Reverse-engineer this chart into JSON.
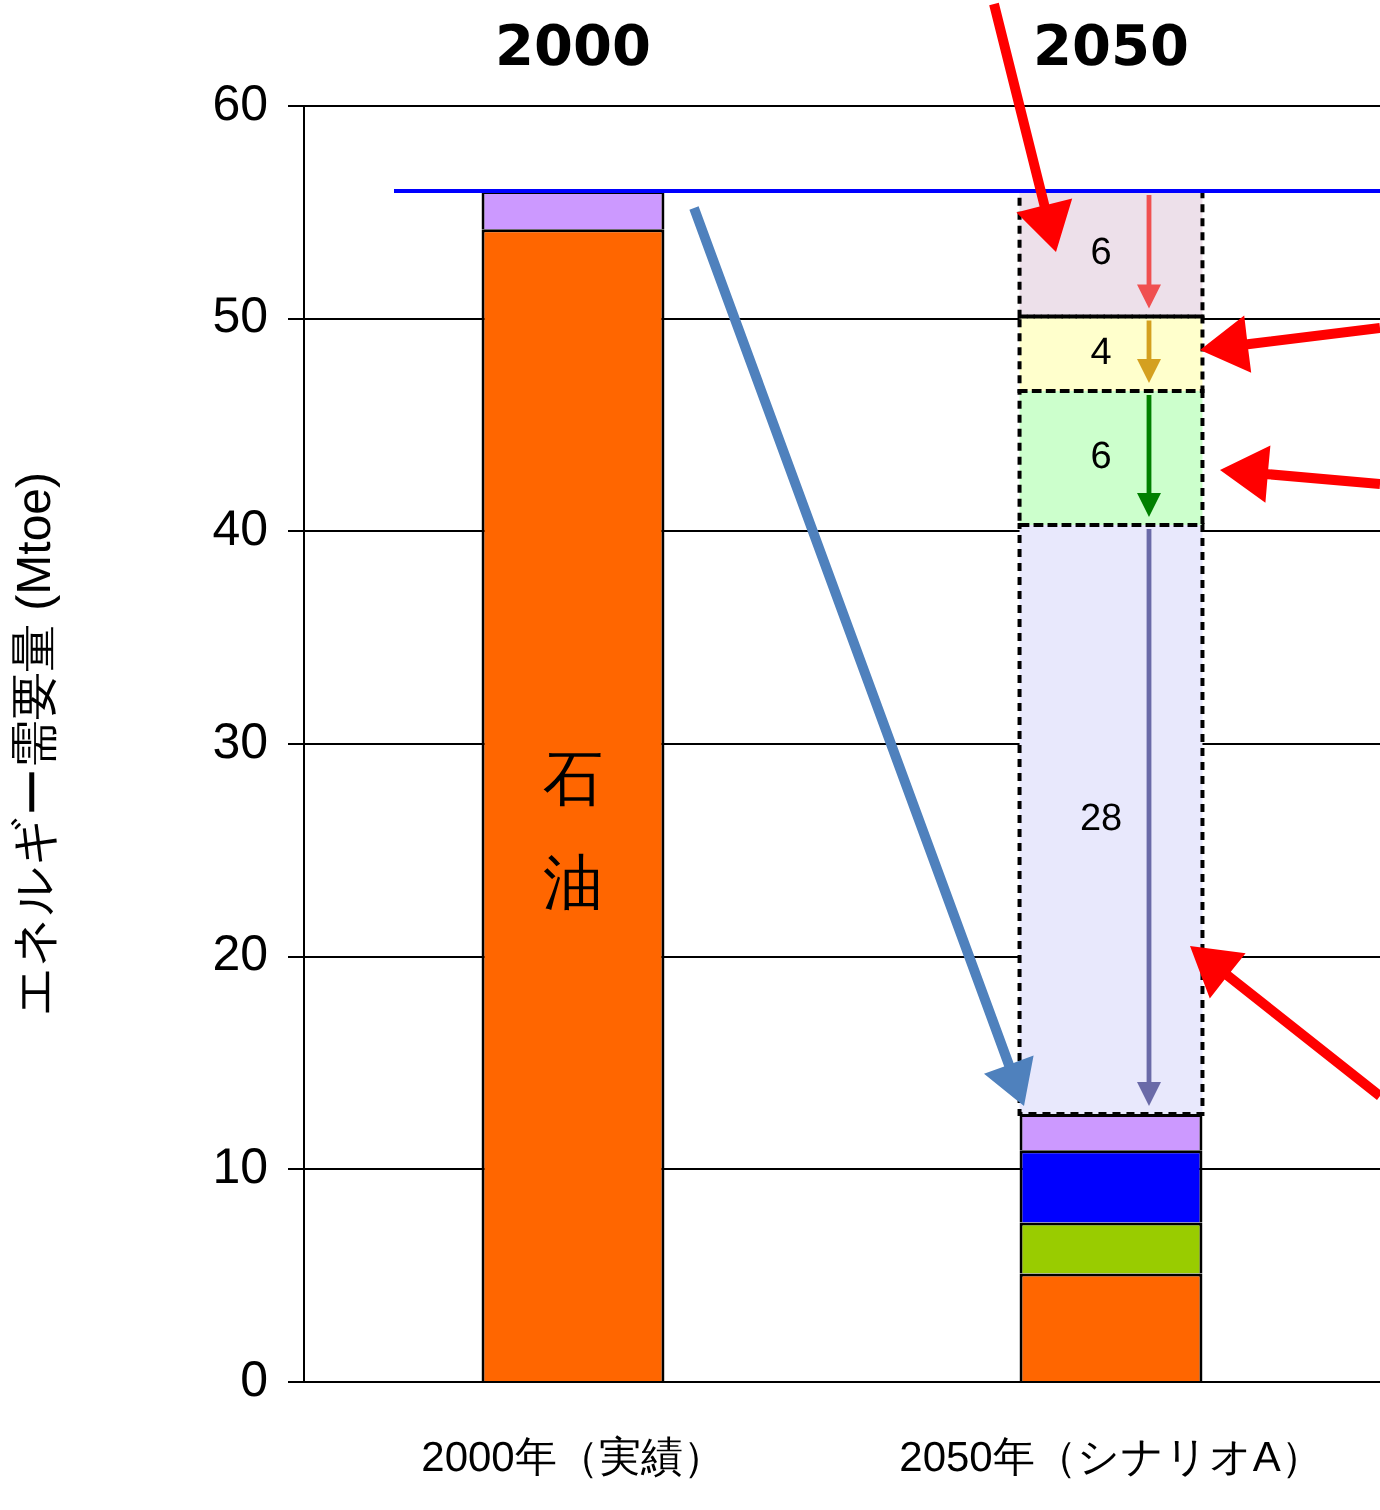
{
  "chart_data": {
    "type": "bar",
    "stacked": true,
    "categories": [
      "2000年（実績）",
      "2050年（シナリオA）"
    ],
    "ylabel": "エネルギー需要量 (Mtoe)",
    "ylim": [
      0,
      60
    ],
    "yticks": [
      0,
      10,
      20,
      30,
      40,
      50,
      60
    ],
    "grid": "y",
    "legend": false,
    "series": [
      {
        "color": "#ff6600",
        "values": [
          54.2,
          5.1
        ]
      },
      {
        "color": "#99cc00",
        "values": [
          null,
          2.4
        ]
      },
      {
        "color": "#0000ff",
        "values": [
          null,
          3.4
        ]
      },
      {
        "color": "#cc99ff",
        "values": [
          1.8,
          1.7
        ]
      },
      {
        "color": "#e8e8fc",
        "values": [
          null,
          27.7
        ],
        "value_labels": [
          null,
          "28"
        ]
      },
      {
        "color": "#ccffcc",
        "values": [
          null,
          6.3
        ],
        "value_labels": [
          null,
          "6"
        ]
      },
      {
        "color": "#ffffcc",
        "values": [
          null,
          3.5
        ],
        "value_labels": [
          null,
          "4"
        ]
      },
      {
        "color": "#ede0ea",
        "values": [
          null,
          5.9
        ],
        "value_labels": [
          null,
          "6"
        ]
      }
    ],
    "ref_lines": [
      {
        "axis": "y",
        "value": 56,
        "color": "#0000ff"
      }
    ],
    "annotations": [
      "2000",
      "2050",
      "石油"
    ]
  }
}
